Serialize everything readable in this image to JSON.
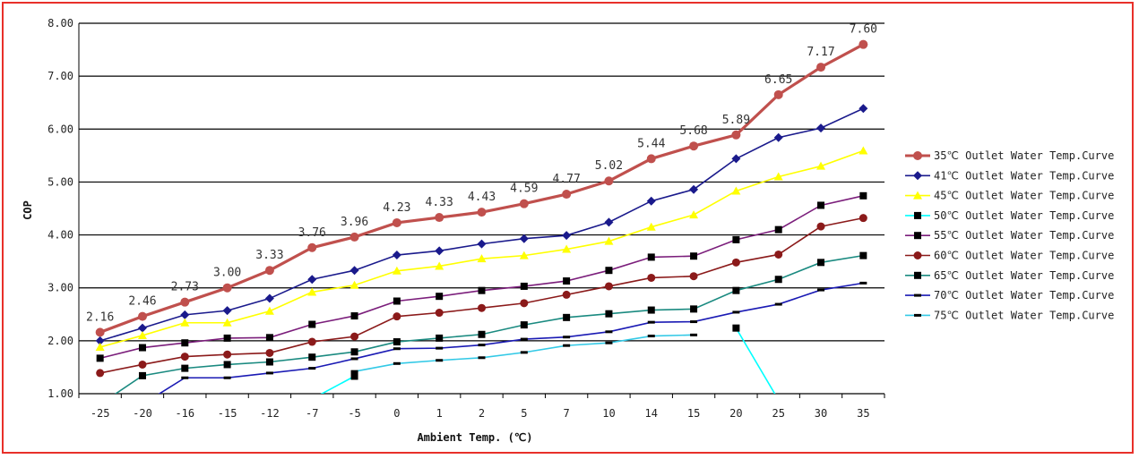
{
  "chart_data": {
    "type": "line",
    "title": "",
    "xlabel": "Ambient Temp. (℃)",
    "ylabel": "COP",
    "ylim": [
      1.0,
      8.0
    ],
    "y_ticks": [
      "1.00",
      "2.00",
      "3.00",
      "4.00",
      "5.00",
      "6.00",
      "7.00",
      "8.00"
    ],
    "grid": "horizontal",
    "legend_position": "right",
    "categories": [
      "-25",
      "-20",
      "-16",
      "-15",
      "-12",
      "-7",
      "-5",
      "0",
      "1",
      "2",
      "5",
      "7",
      "10",
      "14",
      "15",
      "20",
      "25",
      "30",
      "35"
    ],
    "series": [
      {
        "name": "35℃ Outlet Water Temp.Curve",
        "color": "#c0504d",
        "marker": "circle-large",
        "values": [
          2.16,
          2.46,
          2.73,
          3.0,
          3.33,
          3.76,
          3.96,
          4.23,
          4.33,
          4.43,
          4.59,
          4.77,
          5.02,
          5.44,
          5.68,
          5.89,
          6.65,
          7.17,
          7.6
        ]
      },
      {
        "name": "41℃ Outlet Water Temp.Curve",
        "color": "#1a1a8c",
        "marker": "diamond",
        "values": [
          2.0,
          2.24,
          2.49,
          2.57,
          2.8,
          3.16,
          3.33,
          3.62,
          3.7,
          3.83,
          3.93,
          3.99,
          4.24,
          4.64,
          4.86,
          5.44,
          5.84,
          6.02,
          6.39
        ]
      },
      {
        "name": "45℃ Outlet Water Temp.Curve",
        "color": "#ffff00",
        "marker": "triangle",
        "values": [
          1.88,
          2.1,
          2.34,
          2.34,
          2.56,
          2.92,
          3.05,
          3.32,
          3.41,
          3.55,
          3.61,
          3.73,
          3.88,
          4.15,
          4.38,
          4.83,
          5.1,
          5.3,
          5.59
        ]
      },
      {
        "name": "50℃ Outlet Water Temp.Curve",
        "color": "#00ffff",
        "marker": "square",
        "values": [
          null,
          null,
          null,
          null,
          null,
          0.9,
          1.33,
          null,
          null,
          null,
          null,
          null,
          null,
          null,
          null,
          2.24,
          0.88,
          null,
          null
        ]
      },
      {
        "name": "55℃ Outlet Water Temp.Curve",
        "color": "#7b1e7b",
        "marker": "square",
        "values": [
          1.67,
          1.87,
          1.96,
          2.05,
          2.06,
          2.31,
          2.47,
          2.75,
          2.84,
          2.95,
          3.03,
          3.13,
          3.33,
          3.58,
          3.6,
          3.91,
          4.1,
          4.56,
          4.74
        ]
      },
      {
        "name": "60℃ Outlet Water Temp.Curve",
        "color": "#8b1a1a",
        "marker": "circle",
        "values": [
          1.39,
          1.55,
          1.7,
          1.74,
          1.77,
          1.98,
          2.08,
          2.46,
          2.53,
          2.62,
          2.71,
          2.87,
          3.03,
          3.19,
          3.22,
          3.48,
          3.63,
          4.16,
          4.32
        ]
      },
      {
        "name": "65℃ Outlet Water Temp.Curve",
        "color": "#1a8a80",
        "marker": "square",
        "values": [
          0.8,
          1.34,
          1.48,
          1.55,
          1.6,
          1.69,
          1.79,
          1.98,
          2.05,
          2.12,
          2.3,
          2.44,
          2.51,
          2.58,
          2.6,
          2.95,
          3.16,
          3.48,
          3.61
        ]
      },
      {
        "name": "70℃ Outlet Water Temp.Curve",
        "color": "#1a1ab4",
        "marker": "dash",
        "values": [
          null,
          0.8,
          1.3,
          1.3,
          1.39,
          1.48,
          1.66,
          1.85,
          1.86,
          1.92,
          2.03,
          2.07,
          2.17,
          2.35,
          2.36,
          2.54,
          2.69,
          2.96,
          3.09
        ]
      },
      {
        "name": "75℃ Outlet Water Temp.Curve",
        "color": "#33c9e6",
        "marker": "dash",
        "values": [
          null,
          null,
          null,
          null,
          null,
          null,
          1.42,
          1.57,
          1.63,
          1.68,
          1.78,
          1.91,
          1.96,
          2.09,
          2.11,
          null,
          null,
          null,
          null
        ]
      }
    ],
    "data_labels": {
      "series": "35℃ Outlet Water Temp.Curve",
      "labels": [
        "2.16",
        "2.46",
        "2.73",
        "3.00",
        "3.33",
        "3.76",
        "3.96",
        "4.23",
        "4.33",
        "4.43",
        "4.59",
        "4.77",
        "5.02",
        "5.44",
        "5.68",
        "5.89",
        "6.65",
        "7.17",
        "7.60"
      ]
    }
  }
}
